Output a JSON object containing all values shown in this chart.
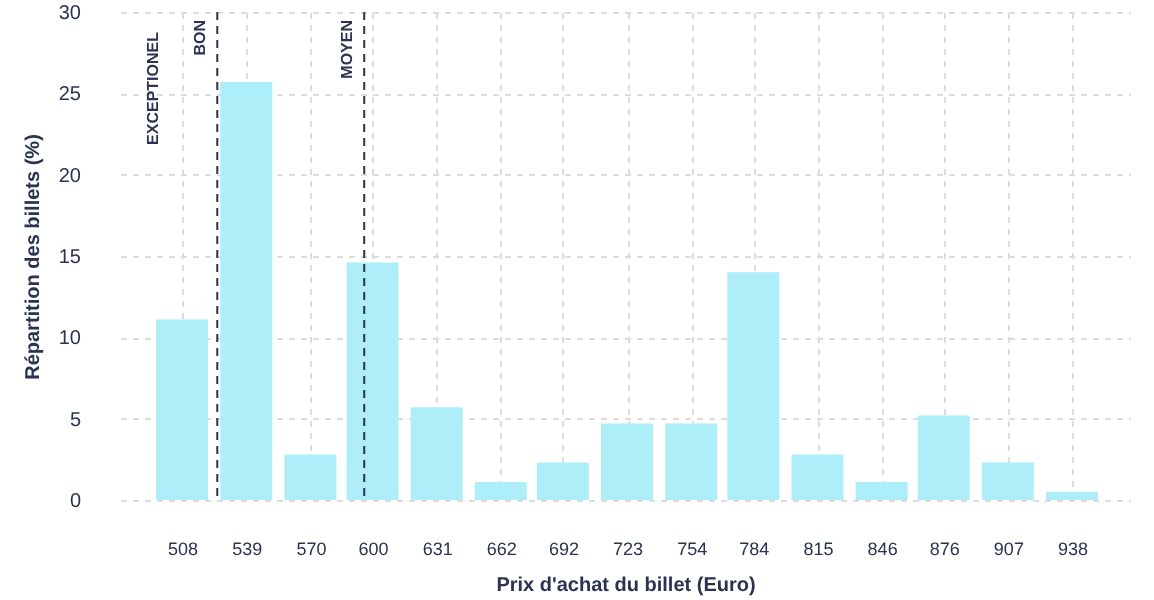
{
  "chart_data": {
    "type": "bar",
    "xlabel": "Prix d'achat du billet (Euro)",
    "ylabel": "Répartition des billets (%)",
    "x": [
      508,
      539,
      570,
      600,
      631,
      662,
      692,
      723,
      754,
      784,
      815,
      846,
      876,
      907,
      938
    ],
    "values": [
      11.1,
      25.7,
      2.8,
      14.6,
      5.7,
      1.1,
      2.3,
      4.7,
      4.7,
      14.0,
      2.8,
      1.1,
      5.2,
      2.3,
      0.5
    ],
    "color": "#aeeef8",
    "xlim": [
      478,
      966
    ],
    "xticks": [
      508,
      539,
      570,
      600,
      631,
      662,
      692,
      723,
      754,
      784,
      815,
      846,
      876,
      907,
      938
    ],
    "ylim": [
      0,
      30
    ],
    "yticks": [
      0,
      5,
      10,
      15,
      20,
      25,
      30
    ],
    "grid": true,
    "ref_lines": [
      {
        "axis": "x",
        "value": 525,
        "label": "BON",
        "color": "#2a3350",
        "line_style": "dashed"
      },
      {
        "axis": "x",
        "value": 596,
        "label": "MOYEN",
        "color": "#2a3350",
        "line_style": "dashed"
      }
    ],
    "annotations": [
      "EXCEPTIONEL"
    ]
  }
}
